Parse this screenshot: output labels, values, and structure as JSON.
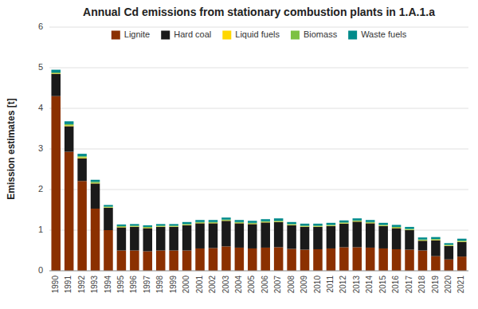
{
  "chart_data": {
    "type": "bar",
    "stacked": true,
    "title": "Annual Cd emissions from stationary combustion plants in 1.A.1.a",
    "ylabel": "Emission estimates [t]",
    "categories": [
      "1990",
      "1991",
      "1992",
      "1993",
      "1994",
      "1995",
      "1996",
      "1997",
      "1998",
      "1999",
      "2000",
      "2001",
      "2002",
      "2003",
      "2004",
      "2005",
      "2006",
      "2007",
      "2008",
      "2009",
      "2010",
      "2011",
      "2012",
      "2013",
      "2014",
      "2015",
      "2016",
      "2017",
      "2018",
      "2019",
      "2020",
      "2021"
    ],
    "series": [
      {
        "name": "Lignite",
        "color": "#8B3000",
        "values": [
          4.3,
          2.93,
          2.21,
          1.53,
          1.0,
          0.5,
          0.5,
          0.48,
          0.5,
          0.5,
          0.5,
          0.55,
          0.56,
          0.6,
          0.57,
          0.55,
          0.57,
          0.58,
          0.54,
          0.52,
          0.53,
          0.55,
          0.58,
          0.58,
          0.57,
          0.55,
          0.53,
          0.52,
          0.5,
          0.36,
          0.28,
          0.35
        ]
      },
      {
        "name": "Hard coal",
        "color": "#1a1a1a",
        "values": [
          0.55,
          0.63,
          0.56,
          0.62,
          0.55,
          0.57,
          0.58,
          0.57,
          0.58,
          0.58,
          0.62,
          0.62,
          0.61,
          0.63,
          0.6,
          0.6,
          0.62,
          0.62,
          0.58,
          0.56,
          0.55,
          0.55,
          0.58,
          0.63,
          0.6,
          0.55,
          0.52,
          0.48,
          0.24,
          0.39,
          0.33,
          0.36
        ]
      },
      {
        "name": "Liquid fuels",
        "color": "#FFD700",
        "values": [
          0.01,
          0.02,
          0.02,
          0.01,
          0.01,
          0.01,
          0.01,
          0.01,
          0.01,
          0.01,
          0.01,
          0.01,
          0.01,
          0.01,
          0.01,
          0.01,
          0.01,
          0.01,
          0.01,
          0.01,
          0.01,
          0.01,
          0.01,
          0.01,
          0.01,
          0.01,
          0.01,
          0.01,
          0.01,
          0.01,
          0.01,
          0.01
        ]
      },
      {
        "name": "Biomass",
        "color": "#7DC142",
        "values": [
          0.02,
          0.03,
          0.03,
          0.03,
          0.02,
          0.02,
          0.02,
          0.02,
          0.02,
          0.02,
          0.02,
          0.02,
          0.02,
          0.02,
          0.02,
          0.02,
          0.02,
          0.02,
          0.02,
          0.02,
          0.02,
          0.02,
          0.02,
          0.02,
          0.02,
          0.02,
          0.02,
          0.02,
          0.02,
          0.02,
          0.02,
          0.02
        ]
      },
      {
        "name": "Waste fuels",
        "color": "#008B8B",
        "values": [
          0.07,
          0.07,
          0.06,
          0.05,
          0.04,
          0.04,
          0.04,
          0.04,
          0.04,
          0.04,
          0.05,
          0.05,
          0.05,
          0.05,
          0.05,
          0.05,
          0.05,
          0.06,
          0.05,
          0.05,
          0.05,
          0.05,
          0.05,
          0.05,
          0.05,
          0.05,
          0.05,
          0.05,
          0.05,
          0.05,
          0.04,
          0.05
        ]
      }
    ],
    "ylim": [
      0,
      6
    ],
    "yticks": [
      0,
      1,
      2,
      3,
      4,
      5,
      6
    ],
    "grid": true,
    "legend": "top"
  }
}
